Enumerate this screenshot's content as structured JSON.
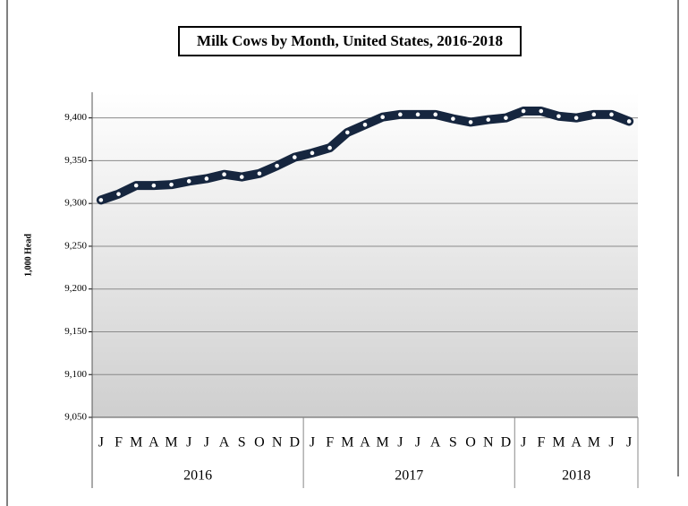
{
  "chart_data": {
    "type": "line",
    "title": "Milk Cows by Month, United States, 2016-2018",
    "ylabel": "1,000 Head",
    "groups": [
      {
        "label": "2016",
        "categories": [
          "J",
          "F",
          "M",
          "A",
          "M",
          "J",
          "J",
          "A",
          "S",
          "O",
          "N",
          "D"
        ]
      },
      {
        "label": "2017",
        "categories": [
          "J",
          "F",
          "M",
          "A",
          "M",
          "J",
          "J",
          "A",
          "S",
          "O",
          "N",
          "D"
        ]
      },
      {
        "label": "2018",
        "categories": [
          "J",
          "F",
          "M",
          "A",
          "M",
          "J",
          "J"
        ]
      }
    ],
    "values": [
      9304,
      9311,
      9321,
      9321,
      9322,
      9326,
      9329,
      9334,
      9331,
      9335,
      9344,
      9354,
      9359,
      9365,
      9383,
      9392,
      9401,
      9404,
      9404,
      9404,
      9399,
      9395,
      9398,
      9400,
      9408,
      9408,
      9402,
      9400,
      9404,
      9404,
      9396
    ],
    "color": "#16263f",
    "ylim": [
      9050,
      9430
    ],
    "yticks": [
      {
        "value": 9050,
        "label": "9,050"
      },
      {
        "value": 9100,
        "label": "9,100"
      },
      {
        "value": 9150,
        "label": "9,150"
      },
      {
        "value": 9200,
        "label": "9,200"
      },
      {
        "value": 9250,
        "label": "9,250"
      },
      {
        "value": 9300,
        "label": "9,300"
      },
      {
        "value": 9350,
        "label": "9,350"
      },
      {
        "value": 9400,
        "label": "9,400"
      }
    ],
    "grid": true
  }
}
